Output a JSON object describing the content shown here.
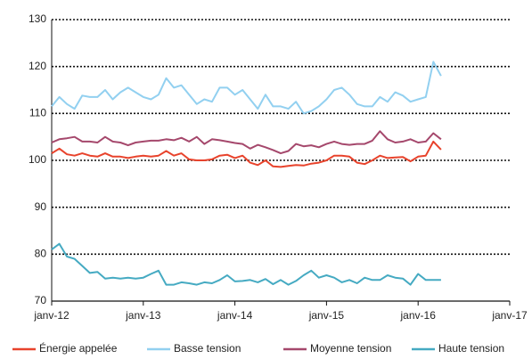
{
  "chart_data": {
    "type": "line",
    "categories": [
      "janv-12",
      null,
      null,
      null,
      null,
      null,
      null,
      null,
      null,
      null,
      null,
      null,
      "janv-13",
      null,
      null,
      null,
      null,
      null,
      null,
      null,
      null,
      null,
      null,
      null,
      "janv-14",
      null,
      null,
      null,
      null,
      null,
      null,
      null,
      null,
      null,
      null,
      null,
      "janv-15",
      null,
      null,
      null,
      null,
      null,
      null,
      null,
      null,
      null,
      null,
      null,
      "janv-16",
      null,
      null,
      null,
      null,
      null,
      null,
      null,
      null,
      null,
      null,
      null,
      "janv-17"
    ],
    "series": [
      {
        "name": "Énergie appelée",
        "color": "#e8432c",
        "values": [
          101.5,
          102.5,
          101.3,
          101,
          101.5,
          101,
          100.8,
          101.5,
          100.8,
          100.8,
          100.5,
          100.8,
          101,
          100.8,
          101,
          102,
          101,
          101.5,
          100.2,
          100,
          100,
          100.2,
          101,
          101.2,
          100.5,
          101,
          99.5,
          99,
          100,
          98.7,
          98.6,
          98.8,
          99,
          98.9,
          99.3,
          99.5,
          100,
          101,
          101,
          100.8,
          99.5,
          99.2,
          100,
          101,
          100.5,
          100.6,
          100.7,
          99.8,
          100.8,
          101,
          104,
          102.3,
          null,
          null,
          null,
          null,
          null,
          null,
          null,
          null,
          null
        ]
      },
      {
        "name": "Basse tension",
        "color": "#92d0f0",
        "values": [
          111.5,
          113.5,
          112,
          111,
          113.8,
          113.5,
          113.5,
          115,
          113,
          114.5,
          115.5,
          114.5,
          113.5,
          113,
          114,
          117.5,
          115.5,
          116,
          114,
          112,
          113,
          112.5,
          115.5,
          115.5,
          114,
          115,
          113,
          111,
          114,
          111.5,
          111.5,
          111,
          112.5,
          110,
          110.5,
          111.5,
          113,
          115,
          115.5,
          114,
          112,
          111.5,
          111.5,
          113.5,
          112.5,
          114.5,
          113.8,
          112.5,
          113,
          113.5,
          121,
          118,
          null,
          null,
          null,
          null,
          null,
          null,
          null,
          null,
          null
        ]
      },
      {
        "name": "Moyenne tension",
        "color": "#a5486c",
        "values": [
          103.8,
          104.5,
          104.7,
          105,
          104,
          104,
          103.8,
          105,
          104,
          103.8,
          103.2,
          103.8,
          104,
          104.2,
          104.2,
          104.5,
          104.3,
          104.8,
          104,
          105,
          103.5,
          104.5,
          104.3,
          104,
          103.7,
          103.5,
          102.5,
          103.3,
          102.8,
          102.2,
          101.5,
          102,
          103.5,
          103,
          103.2,
          102.8,
          103.5,
          104,
          103.5,
          103.3,
          103.5,
          103.5,
          104.2,
          106.2,
          104.5,
          103.8,
          104,
          104.5,
          103.8,
          104,
          105.8,
          104.5,
          null,
          null,
          null,
          null,
          null,
          null,
          null,
          null,
          null
        ]
      },
      {
        "name": "Haute tension",
        "color": "#45aac2",
        "values": [
          81,
          82.2,
          79.5,
          79,
          77.5,
          76,
          76.2,
          74.8,
          75,
          74.8,
          75,
          74.8,
          75,
          75.8,
          76.5,
          73.5,
          73.5,
          74,
          73.8,
          73.5,
          74,
          73.8,
          74.5,
          75.5,
          74.2,
          74.3,
          74.5,
          74,
          74.7,
          73.6,
          74.5,
          73.5,
          74.3,
          75.5,
          76.5,
          75,
          75.5,
          75,
          74,
          74.5,
          73.8,
          75,
          74.5,
          74.5,
          75.5,
          75,
          74.8,
          73.5,
          75.8,
          74.5,
          74.5,
          74.5,
          null,
          null,
          null,
          null,
          null,
          null,
          null,
          null,
          null
        ]
      }
    ],
    "ylim": [
      70,
      130
    ],
    "yticks": [
      70,
      80,
      90,
      100,
      110,
      120,
      130
    ],
    "grid": true,
    "legend": "bottom"
  }
}
